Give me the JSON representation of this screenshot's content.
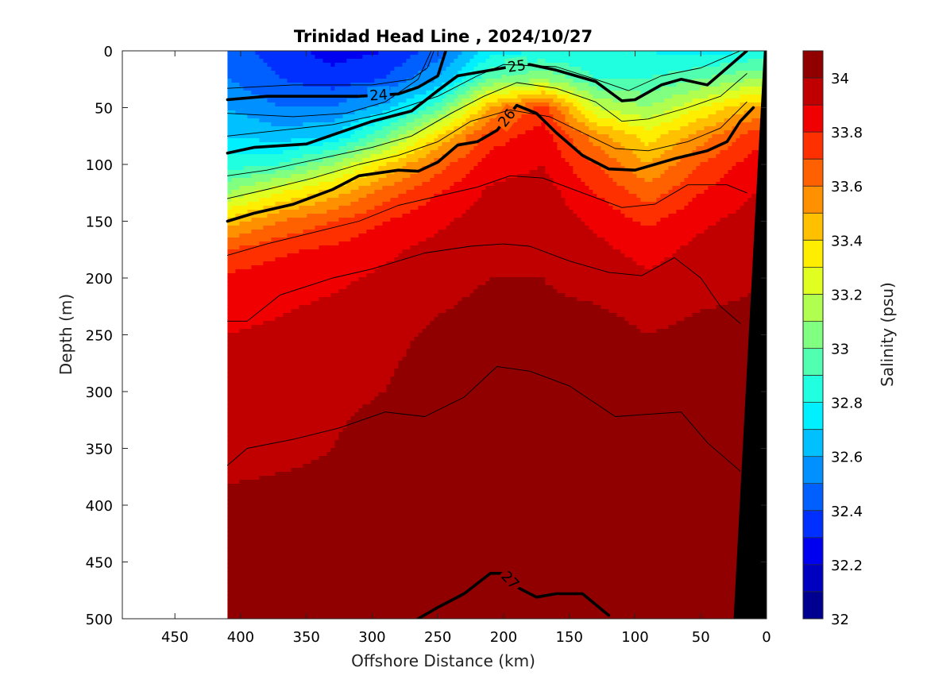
{
  "chart_data": {
    "type": "heatmap",
    "title": "Trinidad Head Line , 2024/10/27",
    "xlabel": "Offshore Distance (km)",
    "ylabel": "Depth (m)",
    "xlim": [
      490,
      0
    ],
    "ylim": [
      0,
      500
    ],
    "x_reversed": true,
    "y_reversed": true,
    "x_ticks": [
      "450",
      "400",
      "350",
      "300",
      "250",
      "200",
      "150",
      "100",
      "50",
      "0"
    ],
    "y_ticks": [
      "0",
      "50",
      "100",
      "150",
      "200",
      "250",
      "300",
      "350",
      "400",
      "450",
      "500"
    ],
    "data_extent_km": [
      410,
      0
    ],
    "colorbar": {
      "label": "Salinity (psu)",
      "min": 32,
      "max": 34.1,
      "step": 0.1,
      "tick_labels": [
        "32",
        "32.2",
        "32.4",
        "32.6",
        "32.8",
        "33",
        "33.2",
        "33.4",
        "33.6",
        "33.8",
        "34"
      ],
      "colors": [
        "#000090",
        "#0000c0",
        "#0000f0",
        "#0030ff",
        "#0060ff",
        "#0090ff",
        "#00c0ff",
        "#00f0ff",
        "#20ffe0",
        "#50ffb0",
        "#80ff80",
        "#b0ff50",
        "#e0ff20",
        "#ffee00",
        "#ffc000",
        "#ff9000",
        "#ff6000",
        "#ff3000",
        "#f00000",
        "#c00000",
        "#900000"
      ]
    },
    "salinity_grid": {
      "distance_km": [
        410,
        370,
        330,
        290,
        250,
        210,
        170,
        130,
        90,
        50,
        10
      ],
      "depth_m": [
        0,
        25,
        50,
        75,
        100,
        125,
        150,
        175,
        200,
        250,
        300,
        350,
        400,
        450,
        500
      ],
      "values": [
        [
          32.45,
          32.35,
          32.25,
          32.3,
          32.45,
          32.75,
          32.8,
          32.8,
          32.8,
          32.75,
          32.8
        ],
        [
          32.5,
          32.4,
          32.35,
          32.4,
          32.6,
          33.0,
          33.1,
          32.9,
          32.9,
          33.0,
          33.1
        ],
        [
          32.6,
          32.5,
          32.5,
          32.65,
          32.95,
          33.5,
          33.75,
          33.2,
          33.1,
          33.3,
          33.5
        ],
        [
          32.7,
          32.65,
          32.7,
          33.0,
          33.4,
          33.75,
          33.85,
          33.55,
          33.35,
          33.55,
          33.75
        ],
        [
          32.85,
          32.9,
          33.1,
          33.4,
          33.65,
          33.85,
          33.9,
          33.7,
          33.5,
          33.7,
          33.85
        ],
        [
          33.1,
          33.3,
          33.45,
          33.65,
          33.8,
          33.92,
          33.95,
          33.8,
          33.65,
          33.8,
          33.9
        ],
        [
          33.45,
          33.6,
          33.7,
          33.8,
          33.88,
          33.95,
          33.97,
          33.88,
          33.78,
          33.88,
          33.94
        ],
        [
          33.7,
          33.78,
          33.82,
          33.88,
          33.93,
          33.98,
          33.98,
          33.93,
          33.86,
          33.93,
          33.97
        ],
        [
          33.82,
          33.86,
          33.88,
          33.92,
          33.96,
          34.0,
          34.0,
          33.96,
          33.92,
          33.96,
          33.99
        ],
        [
          33.9,
          33.92,
          33.95,
          33.97,
          34.02,
          34.05,
          34.03,
          34.05,
          34.0,
          34.03,
          34.03
        ],
        [
          33.93,
          33.95,
          33.98,
          34.0,
          34.06,
          34.07,
          34.06,
          34.06,
          34.05,
          34.05,
          34.06
        ],
        [
          33.95,
          33.97,
          34.0,
          34.04,
          34.05,
          34.06,
          34.06,
          34.05,
          34.05,
          34.1,
          34.07
        ],
        [
          34.03,
          34.04,
          34.04,
          34.05,
          34.09,
          34.08,
          34.1,
          34.08,
          34.07,
          34.09,
          34.08
        ],
        [
          34.05,
          34.06,
          34.06,
          34.07,
          34.11,
          34.1,
          34.11,
          34.1,
          34.09,
          34.11,
          34.1
        ],
        [
          34.09,
          34.1,
          34.1,
          34.11,
          34.12,
          34.12,
          34.12,
          34.11,
          34.11,
          34.12,
          34.11
        ]
      ]
    },
    "density_contours": [
      {
        "label": "24",
        "bold": true,
        "points": [
          [
            410,
            43
          ],
          [
            380,
            40
          ],
          [
            340,
            40
          ],
          [
            310,
            40
          ],
          [
            280,
            38
          ],
          [
            265,
            32
          ],
          [
            250,
            22
          ],
          [
            244,
            0
          ]
        ]
      },
      {
        "label": "25",
        "bold": true,
        "points": [
          [
            410,
            90
          ],
          [
            390,
            85
          ],
          [
            350,
            82
          ],
          [
            330,
            74
          ],
          [
            300,
            62
          ],
          [
            270,
            53
          ],
          [
            250,
            35
          ],
          [
            235,
            22
          ],
          [
            200,
            15
          ],
          [
            180,
            12
          ],
          [
            160,
            17
          ],
          [
            130,
            27
          ],
          [
            110,
            44
          ],
          [
            100,
            43
          ],
          [
            80,
            30
          ],
          [
            65,
            25
          ],
          [
            45,
            30
          ],
          [
            35,
            20
          ],
          [
            15,
            0
          ]
        ]
      },
      {
        "label": "26",
        "bold": true,
        "points": [
          [
            410,
            150
          ],
          [
            390,
            143
          ],
          [
            360,
            135
          ],
          [
            330,
            122
          ],
          [
            310,
            110
          ],
          [
            280,
            105
          ],
          [
            265,
            106
          ],
          [
            250,
            98
          ],
          [
            235,
            83
          ],
          [
            220,
            80
          ],
          [
            205,
            70
          ],
          [
            190,
            48
          ],
          [
            175,
            55
          ],
          [
            160,
            72
          ],
          [
            140,
            92
          ],
          [
            120,
            104
          ],
          [
            100,
            105
          ],
          [
            70,
            95
          ],
          [
            45,
            88
          ],
          [
            30,
            80
          ],
          [
            20,
            62
          ],
          [
            10,
            50
          ]
        ]
      },
      {
        "label": "27",
        "bold": true,
        "points": [
          [
            265,
            500
          ],
          [
            250,
            490
          ],
          [
            230,
            478
          ],
          [
            210,
            460
          ],
          [
            200,
            460
          ],
          [
            190,
            472
          ],
          [
            175,
            481
          ],
          [
            160,
            478
          ],
          [
            140,
            478
          ],
          [
            120,
            497
          ]
        ]
      },
      {
        "label": "",
        "bold": false,
        "points": [
          [
            410,
            33
          ],
          [
            360,
            30
          ],
          [
            300,
            30
          ],
          [
            270,
            25
          ],
          [
            258,
            15
          ],
          [
            253,
            0
          ]
        ]
      },
      {
        "label": "",
        "bold": false,
        "points": [
          [
            410,
            55
          ],
          [
            360,
            58
          ],
          [
            320,
            55
          ],
          [
            290,
            45
          ],
          [
            265,
            25
          ],
          [
            255,
            0
          ]
        ]
      },
      {
        "label": "",
        "bold": false,
        "points": [
          [
            410,
            75
          ],
          [
            370,
            70
          ],
          [
            330,
            65
          ],
          [
            290,
            55
          ],
          [
            250,
            40
          ],
          [
            220,
            22
          ],
          [
            200,
            12
          ],
          [
            160,
            14
          ],
          [
            130,
            25
          ],
          [
            105,
            35
          ],
          [
            80,
            22
          ],
          [
            50,
            15
          ],
          [
            30,
            5
          ],
          [
            20,
            0
          ]
        ]
      },
      {
        "label": "",
        "bold": false,
        "points": [
          [
            410,
            110
          ],
          [
            380,
            105
          ],
          [
            340,
            95
          ],
          [
            300,
            85
          ],
          [
            270,
            75
          ],
          [
            240,
            55
          ],
          [
            215,
            40
          ],
          [
            190,
            28
          ],
          [
            160,
            33
          ],
          [
            130,
            45
          ],
          [
            110,
            62
          ],
          [
            90,
            60
          ],
          [
            60,
            50
          ],
          [
            35,
            40
          ],
          [
            15,
            20
          ]
        ]
      },
      {
        "label": "",
        "bold": false,
        "points": [
          [
            410,
            130
          ],
          [
            380,
            122
          ],
          [
            345,
            112
          ],
          [
            310,
            100
          ],
          [
            280,
            92
          ],
          [
            250,
            80
          ],
          [
            225,
            62
          ],
          [
            195,
            52
          ],
          [
            165,
            58
          ],
          [
            140,
            72
          ],
          [
            115,
            86
          ],
          [
            90,
            88
          ],
          [
            60,
            80
          ],
          [
            35,
            68
          ],
          [
            15,
            45
          ]
        ]
      },
      {
        "label": "",
        "bold": false,
        "points": [
          [
            410,
            180
          ],
          [
            380,
            170
          ],
          [
            345,
            160
          ],
          [
            310,
            150
          ],
          [
            280,
            136
          ],
          [
            250,
            128
          ],
          [
            220,
            120
          ],
          [
            195,
            110
          ],
          [
            170,
            112
          ],
          [
            140,
            125
          ],
          [
            110,
            138
          ],
          [
            85,
            135
          ],
          [
            60,
            118
          ],
          [
            30,
            118
          ],
          [
            15,
            125
          ]
        ]
      },
      {
        "label": "",
        "bold": false,
        "points": [
          [
            410,
            238
          ],
          [
            395,
            238
          ],
          [
            370,
            215
          ],
          [
            330,
            200
          ],
          [
            300,
            192
          ],
          [
            260,
            178
          ],
          [
            225,
            172
          ],
          [
            200,
            170
          ],
          [
            180,
            172
          ],
          [
            150,
            185
          ],
          [
            120,
            195
          ],
          [
            95,
            198
          ],
          [
            70,
            182
          ],
          [
            50,
            200
          ],
          [
            35,
            225
          ],
          [
            20,
            240
          ]
        ]
      },
      {
        "label": "",
        "bold": false,
        "points": [
          [
            410,
            365
          ],
          [
            395,
            350
          ],
          [
            360,
            342
          ],
          [
            325,
            332
          ],
          [
            290,
            318
          ],
          [
            260,
            322
          ],
          [
            230,
            305
          ],
          [
            205,
            278
          ],
          [
            180,
            282
          ],
          [
            150,
            295
          ],
          [
            115,
            322
          ],
          [
            90,
            320
          ],
          [
            65,
            318
          ],
          [
            45,
            345
          ],
          [
            30,
            360
          ],
          [
            20,
            370
          ]
        ]
      }
    ]
  }
}
